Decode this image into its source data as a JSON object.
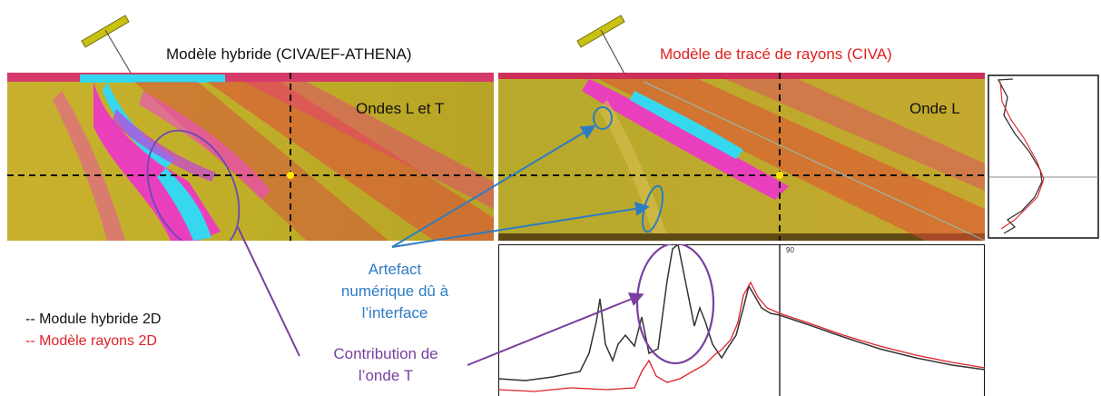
{
  "left_panel": {
    "title": "Modèle  hybride (CIVA/EF-ATHENA)",
    "map_label": "Ondes  L et T"
  },
  "right_panel": {
    "title": "Modèle  de tracé de rayons (CIVA)",
    "map_label": "Onde  L"
  },
  "legend": {
    "line1": "-- Module  hybride 2D",
    "line2": "-- Modèle  rayons 2D"
  },
  "annotations": {
    "artefact": [
      "Artefact",
      "numérique dû à",
      "l’interface"
    ],
    "contribution": [
      "Contribution de",
      "l’onde T"
    ]
  },
  "plot_corner_label": "90",
  "colors": {
    "hybrid_curve": "#333333",
    "ray_curve": "#e0202a",
    "blue_annotation": "#2e7cc4",
    "purple_annotation": "#7a3fa0",
    "crosshair": "#111111",
    "target_point": "#ffe800"
  }
}
